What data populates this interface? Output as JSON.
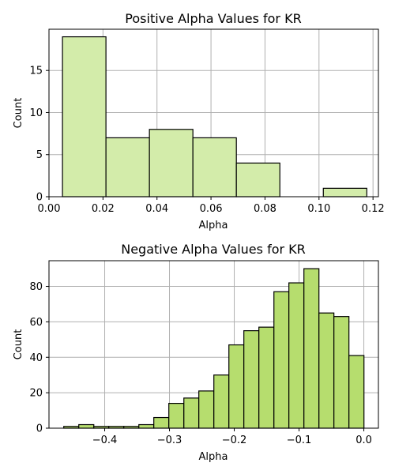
{
  "chart_data": [
    {
      "type": "bar",
      "subtype": "histogram",
      "title": "Positive Alpha Values for KR",
      "xlabel": "Alpha",
      "ylabel": "Count",
      "color": "#d3ecaa",
      "xlim": [
        0.0,
        0.122
      ],
      "ylim": [
        0,
        19.9
      ],
      "xticks": [
        0.0,
        0.02,
        0.04,
        0.06,
        0.08,
        0.1,
        0.12
      ],
      "xtick_labels": [
        "0.00",
        "0.02",
        "0.04",
        "0.06",
        "0.08",
        "0.10",
        "0.12"
      ],
      "yticks": [
        0,
        5,
        10,
        15
      ],
      "ytick_labels": [
        "0",
        "5",
        "10",
        "15"
      ],
      "grid": true,
      "bins": [
        {
          "x0": 0.005,
          "x1": 0.0211,
          "count": 19
        },
        {
          "x0": 0.0211,
          "x1": 0.0372,
          "count": 7
        },
        {
          "x0": 0.0372,
          "x1": 0.0533,
          "count": 8
        },
        {
          "x0": 0.0533,
          "x1": 0.0694,
          "count": 7
        },
        {
          "x0": 0.0694,
          "x1": 0.0855,
          "count": 4
        },
        {
          "x0": 0.0855,
          "x1": 0.1016,
          "count": 0
        },
        {
          "x0": 0.1016,
          "x1": 0.1177,
          "count": 1
        }
      ]
    },
    {
      "type": "bar",
      "subtype": "histogram",
      "title": "Negative Alpha Values for KR",
      "xlabel": "Alpha",
      "ylabel": "Count",
      "color": "#b6dd6e",
      "xlim": [
        -0.486,
        0.0225
      ],
      "ylim": [
        0,
        94.5
      ],
      "xticks": [
        -0.4,
        -0.3,
        -0.2,
        -0.1,
        0.0
      ],
      "xtick_labels": [
        "−0.4",
        "−0.3",
        "−0.2",
        "−0.1",
        "0.0"
      ],
      "yticks": [
        0,
        20,
        40,
        60,
        80
      ],
      "ytick_labels": [
        "0",
        "20",
        "40",
        "60",
        "80"
      ],
      "grid": true,
      "bins": [
        {
          "x0": -0.4632,
          "x1": -0.44,
          "count": 1
        },
        {
          "x0": -0.44,
          "x1": -0.4168,
          "count": 2
        },
        {
          "x0": -0.4168,
          "x1": -0.3937,
          "count": 1
        },
        {
          "x0": -0.3937,
          "x1": -0.3705,
          "count": 1
        },
        {
          "x0": -0.3705,
          "x1": -0.3473,
          "count": 1
        },
        {
          "x0": -0.3473,
          "x1": -0.3242,
          "count": 2
        },
        {
          "x0": -0.3242,
          "x1": -0.301,
          "count": 6
        },
        {
          "x0": -0.301,
          "x1": -0.2778,
          "count": 14
        },
        {
          "x0": -0.2778,
          "x1": -0.2547,
          "count": 17
        },
        {
          "x0": -0.2547,
          "x1": -0.2315,
          "count": 21
        },
        {
          "x0": -0.2315,
          "x1": -0.2083,
          "count": 30
        },
        {
          "x0": -0.2083,
          "x1": -0.1852,
          "count": 47
        },
        {
          "x0": -0.1852,
          "x1": -0.162,
          "count": 55
        },
        {
          "x0": -0.162,
          "x1": -0.1388,
          "count": 57
        },
        {
          "x0": -0.1388,
          "x1": -0.1157,
          "count": 77
        },
        {
          "x0": -0.1157,
          "x1": -0.0925,
          "count": 82
        },
        {
          "x0": -0.0925,
          "x1": -0.0693,
          "count": 90
        },
        {
          "x0": -0.0693,
          "x1": -0.0462,
          "count": 65
        },
        {
          "x0": -0.0462,
          "x1": -0.023,
          "count": 63
        },
        {
          "x0": -0.023,
          "x1": 0.0002,
          "count": 41
        }
      ]
    }
  ]
}
